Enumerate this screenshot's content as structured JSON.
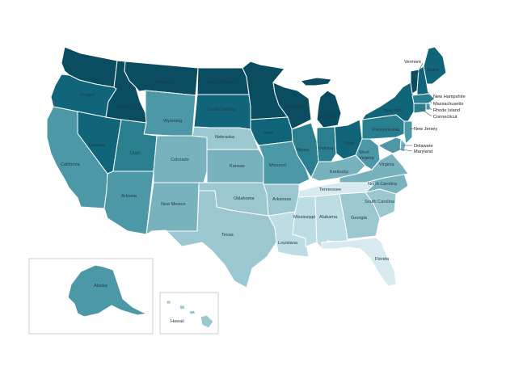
{
  "palette": {
    "c1": "#0a4d60",
    "c2": "#11657a",
    "c3": "#2a7f8f",
    "c4": "#4d98a6",
    "c5": "#78b2bd",
    "c6": "#9bc7d0",
    "c7": "#bddde4",
    "c8": "#d6eaef"
  },
  "labels": {
    "WA": "",
    "OR": "Oregon",
    "CA": "California",
    "NV": "Nevada",
    "ID": "Idaho",
    "MT": "Montana",
    "WY": "Wyoming",
    "UT": "Utah",
    "AZ": "Arizona",
    "CO": "Colorado",
    "NM": "New Mexico",
    "ND": "North Dakota",
    "SD": "South Dakota",
    "NE": "Nebraska",
    "KS": "Kansas",
    "OK": "Oklahoma",
    "TX": "Texas",
    "MN": "",
    "IA": "Iowa",
    "MO": "Missouri",
    "AR": "Arkansas",
    "LA": "Louisiana",
    "WI": "Wisconsin",
    "IL": "Illinois",
    "MI": "Michigan",
    "IN": "Indiana",
    "OH": "Ohio",
    "KY": "Kentucky",
    "TN": "Tennessee",
    "MS": "Mississippi",
    "AL": "Alabama",
    "GA": "Georgia",
    "FL": "Florida",
    "SC": "South Carolina",
    "NC": "North Carolina",
    "VA": "Virginia",
    "WV": "West Virginia",
    "PA": "Pennsylvania",
    "NY": "New York",
    "ME": "Maine",
    "AK": "Alaska",
    "HI": "Hawaii",
    "VT": "Vermont",
    "NH": "New Hampshire",
    "MA": "Massachusetts",
    "RI": "Rhode Island",
    "CT": "Connecticut",
    "NJ": "New Jersey",
    "DE": "Delaware",
    "MD": "Maryland"
  },
  "states": [
    {
      "id": "WA",
      "shade": "c1"
    },
    {
      "id": "OR",
      "shade": "c2"
    },
    {
      "id": "CA",
      "shade": "c4"
    },
    {
      "id": "NV",
      "shade": "c2"
    },
    {
      "id": "ID",
      "shade": "c1"
    },
    {
      "id": "MT",
      "shade": "c1"
    },
    {
      "id": "WY",
      "shade": "c4"
    },
    {
      "id": "UT",
      "shade": "c3"
    },
    {
      "id": "AZ",
      "shade": "c4"
    },
    {
      "id": "CO",
      "shade": "c5"
    },
    {
      "id": "NM",
      "shade": "c5"
    },
    {
      "id": "ND",
      "shade": "c1"
    },
    {
      "id": "SD",
      "shade": "c2"
    },
    {
      "id": "NE",
      "shade": "c6"
    },
    {
      "id": "KS",
      "shade": "c5"
    },
    {
      "id": "OK",
      "shade": "c6"
    },
    {
      "id": "TX",
      "shade": "c6"
    },
    {
      "id": "MN",
      "shade": "c1"
    },
    {
      "id": "IA",
      "shade": "c2"
    },
    {
      "id": "MO",
      "shade": "c4"
    },
    {
      "id": "AR",
      "shade": "c6"
    },
    {
      "id": "LA",
      "shade": "c7"
    },
    {
      "id": "WI",
      "shade": "c1"
    },
    {
      "id": "IL",
      "shade": "c3"
    },
    {
      "id": "MI",
      "shade": "c1"
    },
    {
      "id": "IN",
      "shade": "c3"
    },
    {
      "id": "OH",
      "shade": "c2"
    },
    {
      "id": "KY",
      "shade": "c5"
    },
    {
      "id": "TN",
      "shade": "c8"
    },
    {
      "id": "MS",
      "shade": "c7"
    },
    {
      "id": "AL",
      "shade": "c7"
    },
    {
      "id": "GA",
      "shade": "c6"
    },
    {
      "id": "FL",
      "shade": "c8"
    },
    {
      "id": "SC",
      "shade": "c6"
    },
    {
      "id": "NC",
      "shade": "c5"
    },
    {
      "id": "VA",
      "shade": "c5"
    },
    {
      "id": "WV",
      "shade": "c4"
    },
    {
      "id": "PA",
      "shade": "c3"
    },
    {
      "id": "NY",
      "shade": "c2"
    },
    {
      "id": "ME",
      "shade": "c2"
    },
    {
      "id": "VT",
      "shade": "c1"
    },
    {
      "id": "NH",
      "shade": "c2"
    },
    {
      "id": "MA",
      "shade": "c3"
    },
    {
      "id": "RI",
      "shade": "c4"
    },
    {
      "id": "CT",
      "shade": "c3"
    },
    {
      "id": "NJ",
      "shade": "c4"
    },
    {
      "id": "DE",
      "shade": "c5"
    },
    {
      "id": "MD",
      "shade": "c4"
    },
    {
      "id": "AK",
      "shade": "c4"
    },
    {
      "id": "HI",
      "shade": "c6"
    }
  ]
}
